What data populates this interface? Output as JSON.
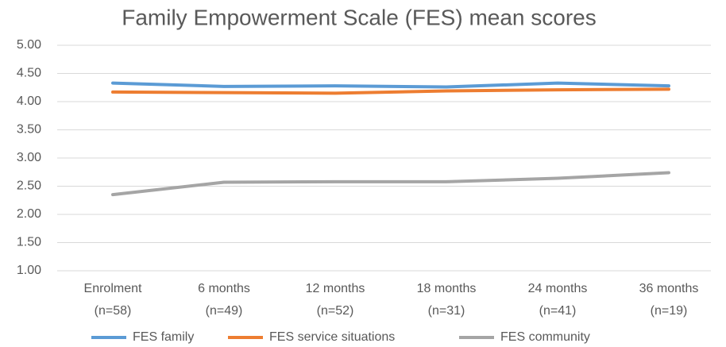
{
  "chart_data": {
    "type": "line",
    "title": "Family Empowerment Scale (FES) mean scores",
    "categories": [
      [
        "Enrolment",
        "(n=58)"
      ],
      [
        "6 months",
        "(n=49)"
      ],
      [
        "12 months",
        "(n=52)"
      ],
      [
        "18 months",
        "(n=31)"
      ],
      [
        "24 months",
        "(n=41)"
      ],
      [
        "36 months",
        "(n=19)"
      ]
    ],
    "series": [
      {
        "name": "FES family",
        "color": "#5b9bd5",
        "values": [
          4.33,
          4.27,
          4.28,
          4.26,
          4.33,
          4.28
        ]
      },
      {
        "name": "FES service situations",
        "color": "#ed7d31",
        "values": [
          4.17,
          4.16,
          4.15,
          4.19,
          4.21,
          4.22
        ]
      },
      {
        "name": "FES community",
        "color": "#a5a5a5",
        "values": [
          2.35,
          2.57,
          2.58,
          2.58,
          2.64,
          2.74
        ]
      }
    ],
    "ylim": [
      1,
      5
    ],
    "yticks": [
      {
        "value": 1,
        "label": "1.00"
      },
      {
        "value": 1.5,
        "label": "1.50"
      },
      {
        "value": 2,
        "label": "2.00"
      },
      {
        "value": 2.5,
        "label": "2.50"
      },
      {
        "value": 3,
        "label": "3.00"
      },
      {
        "value": 3.5,
        "label": "3.50"
      },
      {
        "value": 4,
        "label": "4.00"
      },
      {
        "value": 4.5,
        "label": "4.50"
      },
      {
        "value": 5,
        "label": "5.00"
      }
    ],
    "grid": true,
    "legend": "bottom"
  }
}
